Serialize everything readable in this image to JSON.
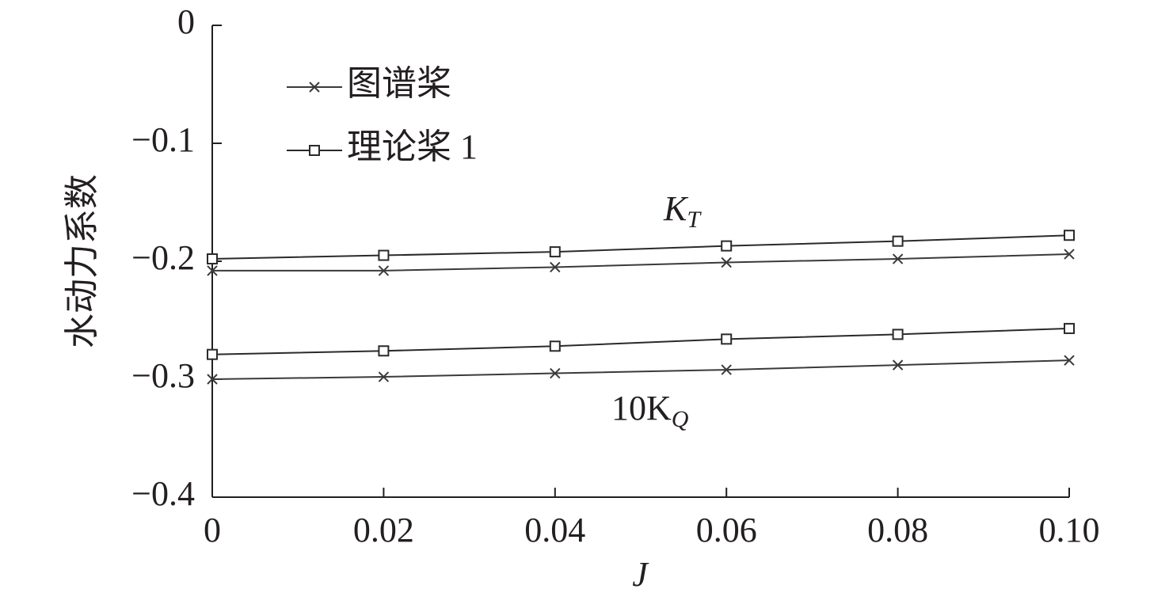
{
  "chart_data": {
    "type": "line",
    "xlabel": "J",
    "ylabel": "水动力系数",
    "x": [
      0,
      0.02,
      0.04,
      0.06,
      0.08,
      0.1
    ],
    "xlim": [
      0,
      0.1
    ],
    "xticks": [
      0,
      0.02,
      0.04,
      0.06,
      0.08,
      {
        "value": 0.1,
        "label": "0.10"
      }
    ],
    "ylim": [
      -0.4,
      0
    ],
    "yticks": [
      0,
      {
        "value": -0.1,
        "label": "−0.1"
      },
      {
        "value": -0.2,
        "label": "−0.2"
      },
      {
        "value": -0.3,
        "label": "−0.3"
      },
      {
        "value": -0.4,
        "label": "−0.4"
      }
    ],
    "series": [
      {
        "name": "图谱桨",
        "marker": "x",
        "color": "#3a3a3a",
        "curves": [
          [
            -0.208,
            -0.208,
            -0.205,
            -0.201,
            -0.198,
            -0.194
          ],
          [
            -0.3,
            -0.298,
            -0.295,
            -0.292,
            -0.288,
            -0.284
          ]
        ]
      },
      {
        "name": "理论桨 1",
        "marker": "square",
        "color": "#2a2a2a",
        "curves": [
          [
            -0.198,
            -0.195,
            -0.192,
            -0.187,
            -0.183,
            -0.178
          ],
          [
            -0.279,
            -0.276,
            -0.272,
            -0.266,
            -0.262,
            -0.257
          ]
        ]
      }
    ],
    "curve_labels": [
      {
        "text": "K",
        "sub": "T"
      },
      {
        "text": "10K",
        "sub": "Q"
      }
    ]
  }
}
